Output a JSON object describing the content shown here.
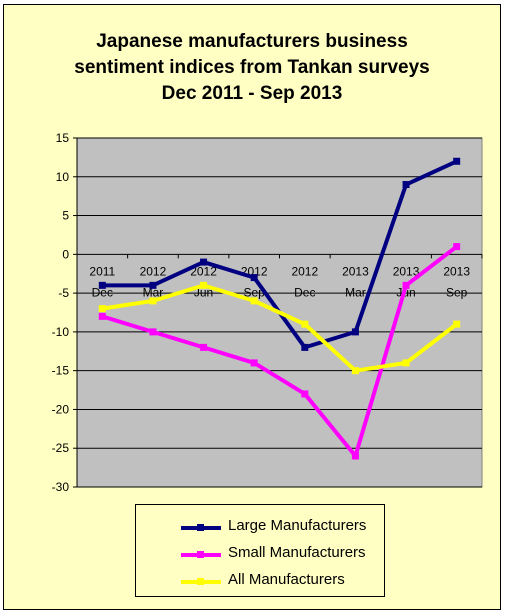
{
  "title_lines": [
    "Japanese manufacturers business",
    "sentiment indices from Tankan surveys",
    "Dec 2011 - Sep 2013"
  ],
  "chart_data": {
    "type": "line",
    "title": "Japanese manufacturers business sentiment indices from Tankan surveys Dec 2011 - Sep 2013",
    "categories": [
      [
        "2011",
        "Dec"
      ],
      [
        "2012",
        "Mar"
      ],
      [
        "2012",
        "Jun"
      ],
      [
        "2012",
        "Sep"
      ],
      [
        "2012",
        "Dec"
      ],
      [
        "2013",
        "Mar"
      ],
      [
        "2013",
        "Jun"
      ],
      [
        "2013",
        "Sep"
      ]
    ],
    "ylim": [
      -30,
      15
    ],
    "yticks": [
      15,
      10,
      5,
      0,
      -5,
      -10,
      -15,
      -20,
      -25,
      -30
    ],
    "grid": true,
    "legend_position": "bottom",
    "series": [
      {
        "name": "Large Manufacturers",
        "color": "#000080",
        "values": [
          -4,
          -4,
          -1,
          -3,
          -12,
          -10,
          9,
          12
        ]
      },
      {
        "name": "Small Manufacturers",
        "color": "#ff00ff",
        "values": [
          -8,
          -10,
          -12,
          -14,
          -18,
          -26,
          -4,
          1
        ]
      },
      {
        "name": "All Manufacturers",
        "color": "#ffff00",
        "values": [
          -7,
          -6,
          -4,
          -6,
          -9,
          -15,
          -14,
          -9
        ]
      }
    ]
  }
}
